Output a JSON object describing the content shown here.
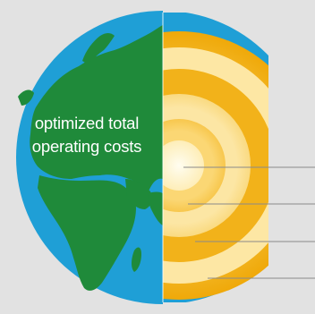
{
  "globe": {
    "label_lines": [
      "optimized total",
      "operating costs"
    ],
    "colors": {
      "background": "#e2e2e2",
      "ocean": "#1f9fd6",
      "land": "#1f8a3a",
      "core_center": "#fffce8",
      "layer_light": "#fde9a8",
      "layer_mid": "#f7c64a",
      "layer_dark": "#f0a800",
      "leader_line": "#8a8a8a"
    }
  }
}
